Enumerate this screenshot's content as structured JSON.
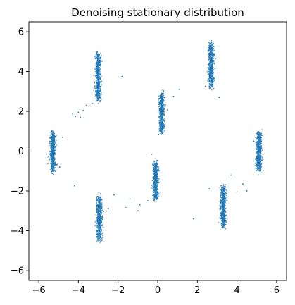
{
  "chart_data": {
    "type": "scatter",
    "title": "Denoising stationary distribution",
    "xlabel": "",
    "ylabel": "",
    "xlim": [
      -6.5,
      6.5
    ],
    "ylim": [
      -6.5,
      6.5
    ],
    "xticks": [
      -6,
      -4,
      -2,
      0,
      2,
      4,
      6
    ],
    "yticks": [
      -6,
      -4,
      -2,
      0,
      2,
      4,
      6
    ],
    "grid": false,
    "color": "#1f77b4",
    "clusters": [
      {
        "x": -5.3,
        "y": 0.0,
        "x_spread": 0.13,
        "y_range": [
          -1.05,
          1.0
        ],
        "count": 520
      },
      {
        "x": -3.0,
        "y": 3.8,
        "x_spread": 0.13,
        "y_range": [
          2.55,
          4.95
        ],
        "count": 560
      },
      {
        "x": -2.95,
        "y": -3.3,
        "x_spread": 0.13,
        "y_range": [
          -4.5,
          -2.3
        ],
        "count": 560
      },
      {
        "x": -0.1,
        "y": -1.5,
        "x_spread": 0.12,
        "y_range": [
          -2.5,
          -0.5
        ],
        "count": 500
      },
      {
        "x": 0.2,
        "y": 1.9,
        "x_spread": 0.12,
        "y_range": [
          0.85,
          2.95
        ],
        "count": 520
      },
      {
        "x": 2.7,
        "y": 4.3,
        "x_spread": 0.13,
        "y_range": [
          3.2,
          5.45
        ],
        "count": 540
      },
      {
        "x": 3.3,
        "y": -2.8,
        "x_spread": 0.13,
        "y_range": [
          -3.85,
          -1.75
        ],
        "count": 540
      },
      {
        "x": 5.1,
        "y": 0.0,
        "x_spread": 0.13,
        "y_range": [
          -1.05,
          1.0
        ],
        "count": 520
      }
    ],
    "outliers": {
      "x": [
        -4.3,
        -4.15,
        -4.0,
        -3.9,
        -3.75,
        -1.8,
        -4.2,
        -2.2,
        -1.4,
        -1.0,
        -0.9,
        -0.3,
        -4.8,
        -3.6,
        0.8,
        1.1,
        2.4,
        3.1,
        4.5,
        4.3,
        4.0,
        3.7,
        -0.5,
        1.8,
        2.6,
        -2.5,
        -1.6,
        4.85,
        -4.95,
        -3.3
      ],
      "y": [
        1.9,
        1.75,
        1.95,
        1.7,
        2.05,
        3.75,
        -1.75,
        -2.2,
        -2.4,
        -3.0,
        -2.7,
        -0.15,
        0.7,
        2.3,
        2.75,
        3.1,
        3.25,
        2.7,
        -2.0,
        -1.65,
        -2.05,
        -1.2,
        -2.5,
        -3.4,
        -1.9,
        -2.9,
        -2.85,
        0.5,
        -0.8,
        2.4
      ]
    }
  }
}
